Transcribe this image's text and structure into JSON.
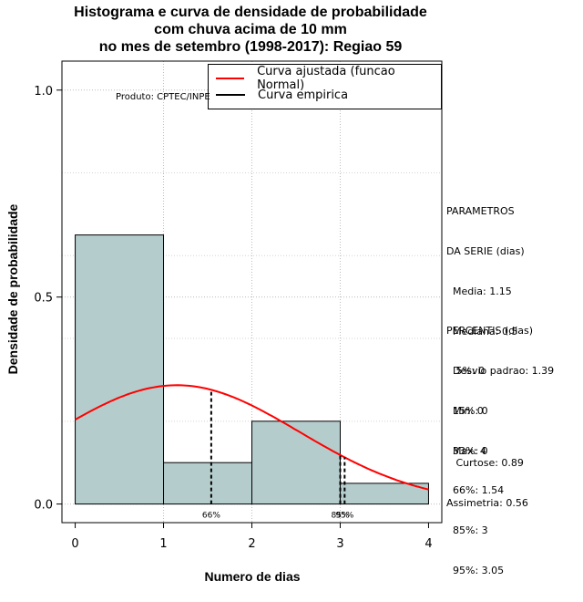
{
  "chart_data": {
    "type": "bar",
    "title_lines": [
      "Histograma e curva de densidade de probabilidade",
      "com chuva acima de 10 mm",
      "no mes de setembro (1998-2017): Regiao 59"
    ],
    "xlabel": "Numero de dias",
    "ylabel": "Densidade de probabilidade",
    "xlim": [
      -0.15,
      4.15
    ],
    "ylim": [
      -0.045,
      1.07
    ],
    "x_ticks": [
      0,
      1,
      2,
      3,
      4
    ],
    "y_ticks": [
      0.0,
      0.5,
      1.0
    ],
    "y_tick_labels": [
      "0.0",
      "0.5",
      "1.0"
    ],
    "grid": true,
    "histogram": {
      "bins": [
        [
          0,
          1
        ],
        [
          1,
          2
        ],
        [
          2,
          3
        ],
        [
          3,
          4
        ]
      ],
      "density": [
        0.65,
        0.1,
        0.2,
        0.05
      ],
      "color": "#b5cccc"
    },
    "normal_curve": {
      "name": "Curva ajustada (funcao Normal)",
      "mean": 1.15,
      "sd": 1.39,
      "x_range": [
        0,
        4
      ],
      "color": "#ff0000"
    },
    "empirical_curve": {
      "name": "Curva empirica",
      "color": "#000000"
    },
    "percentile_markers": [
      {
        "label": "66%",
        "x": 1.54
      },
      {
        "label": "85%",
        "x": 3
      },
      {
        "label": "95%",
        "x": 3.05
      }
    ],
    "legend_position": "top-right"
  },
  "credit": "Produto: CPTEC/INPE",
  "parametros": {
    "heading": [
      "PARAMETROS",
      "DA SERIE (dias)"
    ],
    "items": [
      "  Media: 1.15",
      "  Mediana: 0.5",
      "  Desvio padrao: 1.39",
      "  Min: 0",
      "  Max: 4"
    ]
  },
  "percentis": {
    "heading": "PERCENTIS (dias)",
    "items": [
      "   5%: 0",
      "  15%: 0",
      "  33%: 0",
      "  66%: 1.54",
      "  85%: 3",
      "  95%: 3.05"
    ]
  },
  "shape": {
    "curtose": "   Curtose: 0.89",
    "assimetria": "Assimetria: 0.56"
  }
}
